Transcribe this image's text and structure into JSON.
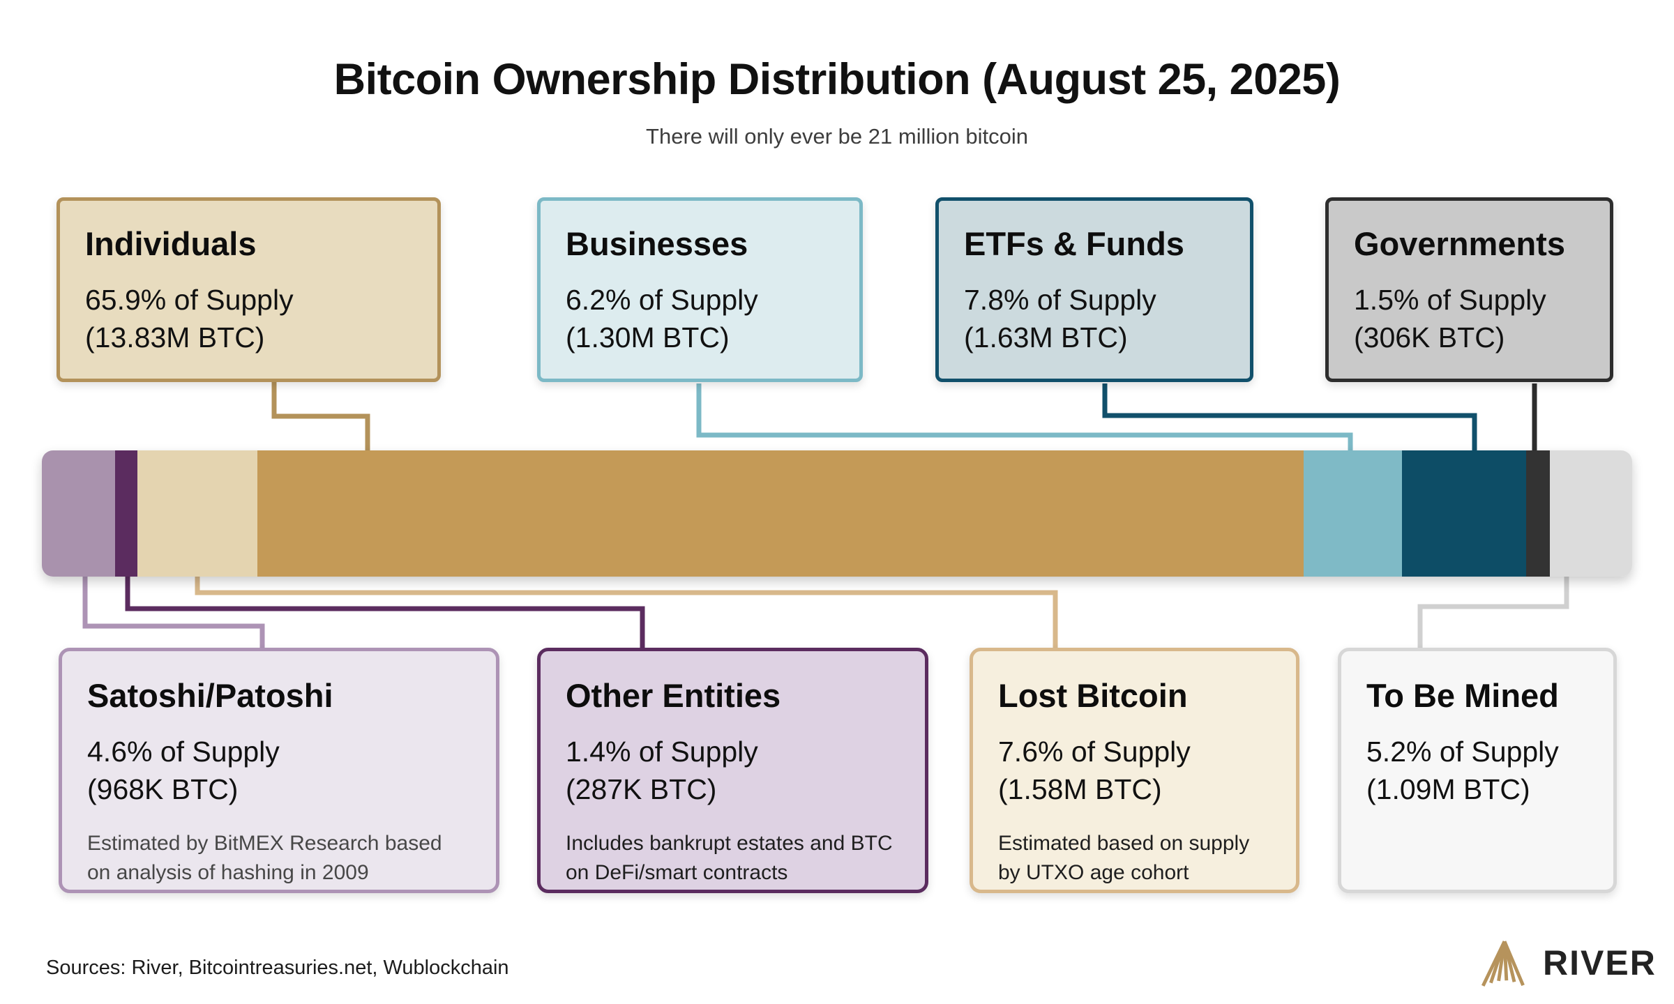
{
  "title": "Bitcoin Ownership Distribution (August 25, 2025)",
  "subtitle": "There will only ever be 21 million bitcoin",
  "footer": {
    "sources": "Sources: River, Bitcointreasuries.net, Wublockchain",
    "brand": "RIVER"
  },
  "chart_data": {
    "type": "bar",
    "subtype": "stacked-horizontal-100pct",
    "title": "Bitcoin Ownership Distribution (August 25, 2025)",
    "total_label": "21 million bitcoin",
    "unit": "percent of total bitcoin supply",
    "segments": [
      {
        "id": "satoshi-patoshi",
        "label": "Satoshi/Patoshi",
        "pct": 4.6,
        "btc": "968K BTC",
        "stat1": "4.6% of Supply",
        "stat2": "(968K BTC)",
        "note": "Estimated by BitMEX Research based on analysis of hashing in 2009",
        "color": "#a992ad",
        "accent": "#ad93b5"
      },
      {
        "id": "other-entities",
        "label": "Other Entities",
        "pct": 1.4,
        "btc": "287K BTC",
        "stat1": "1.4% of Supply",
        "stat2": "(287K BTC)",
        "note": "Includes bankrupt estates and BTC on DeFi/smart contracts",
        "color": "#5b2c5f",
        "accent": "#5b2c5f"
      },
      {
        "id": "lost-bitcoin",
        "label": "Lost Bitcoin",
        "pct": 7.6,
        "btc": "1.58M BTC",
        "stat1": "7.6% of Supply",
        "stat2": "(1.58M BTC)",
        "note": "Estimated based on supply by UTXO age cohort",
        "color": "#e4d4b0",
        "accent": "#d8b88b"
      },
      {
        "id": "individuals",
        "label": "Individuals",
        "pct": 65.9,
        "btc": "13.83M BTC",
        "stat1": "65.9% of Supply",
        "stat2": "(13.83M BTC)",
        "color": "#c49a57",
        "accent": "#b3925a"
      },
      {
        "id": "businesses",
        "label": "Businesses",
        "pct": 6.2,
        "btc": "1.30M BTC",
        "stat1": "6.2% of Supply",
        "stat2": "(1.30M BTC)",
        "color": "#7fbac6",
        "accent": "#7cb9c6"
      },
      {
        "id": "etfs-funds",
        "label": "ETFs & Funds",
        "pct": 7.8,
        "btc": "1.63M BTC",
        "stat1": "7.8% of Supply",
        "stat2": "(1.63M BTC)",
        "color": "#0d4d66",
        "accent": "#11506b"
      },
      {
        "id": "governments",
        "label": "Governments",
        "pct": 1.5,
        "btc": "306K BTC",
        "stat1": "1.5% of Supply",
        "stat2": "(306K BTC)",
        "color": "#333333",
        "accent": "#2d2d2d"
      },
      {
        "id": "to-be-mined",
        "label": "To Be Mined",
        "pct": 5.2,
        "btc": "1.09M BTC",
        "stat1": "5.2% of Supply",
        "stat2": "(1.09M BTC)",
        "color": "#dcdcdc",
        "accent": "#d0d0d0"
      }
    ]
  }
}
